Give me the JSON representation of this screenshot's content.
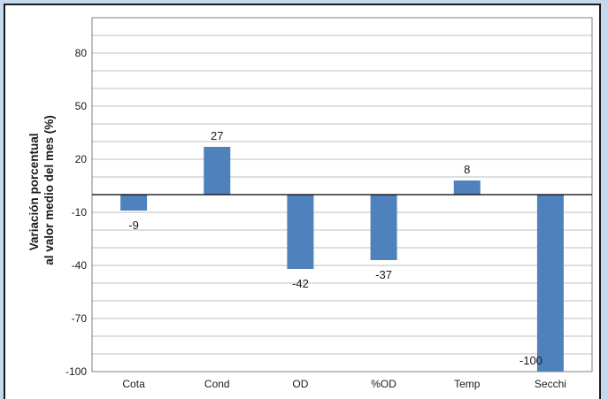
{
  "chart_data": {
    "type": "bar",
    "title": "",
    "ylabel_lines": [
      "Variación porcentual",
      "al valor medio del mes (%)"
    ],
    "xlabel": "",
    "categories": [
      "Cota",
      "Cond",
      "OD",
      "%OD",
      "Temp",
      "Secchi"
    ],
    "values": [
      -9,
      27,
      -42,
      -37,
      8,
      -100
    ],
    "data_labels": [
      "-9",
      "27",
      "-42",
      "-37",
      "8",
      "-100"
    ],
    "y_ticks": [
      80,
      50,
      20,
      -10,
      -40,
      -70,
      -100
    ],
    "ylim": [
      -100,
      100
    ],
    "minor_grid_step": 10,
    "grid": true,
    "legend": "none",
    "colors": {
      "bar": "#4f81bd",
      "grid": "#bfbfbf",
      "axis": "#000000"
    }
  }
}
